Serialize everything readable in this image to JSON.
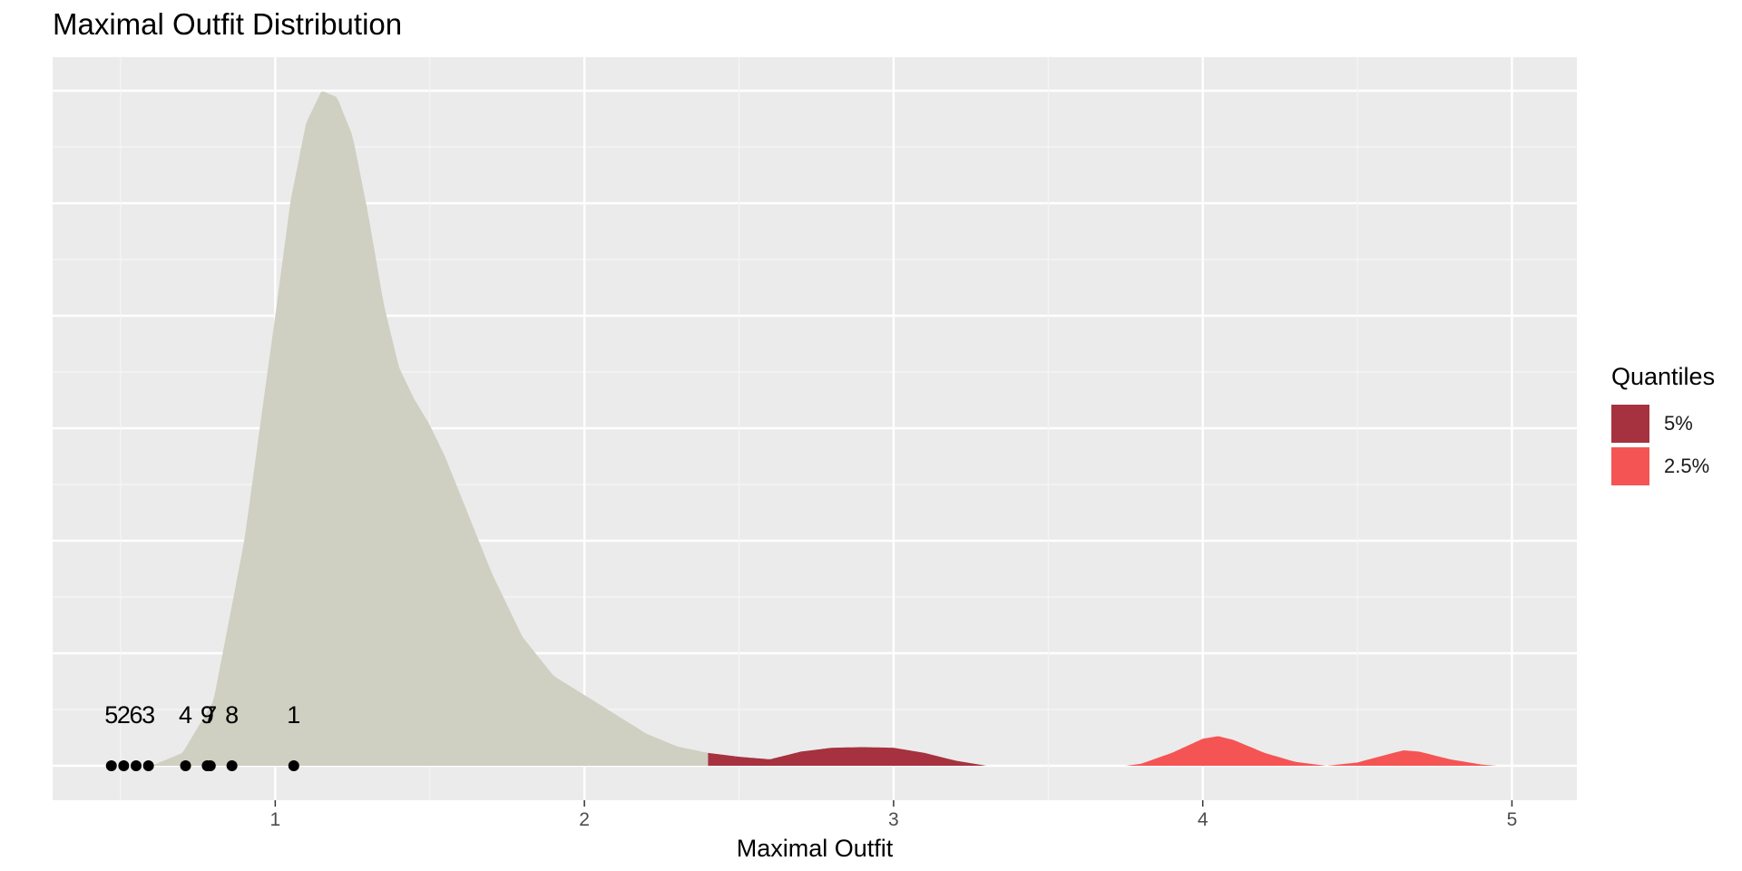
{
  "chart_data": {
    "type": "area",
    "title": "Maximal Outfit Distribution",
    "xlabel": "Maximal Outfit",
    "ylabel": "",
    "xlim": [
      0.28,
      5.21
    ],
    "x_ticks": [
      1,
      2,
      3,
      4,
      5
    ],
    "grid": true,
    "legend": {
      "title": "Quantiles",
      "placement": "right",
      "entries": [
        {
          "label": "5%",
          "color": "#A6323F"
        },
        {
          "label": "2.5%",
          "color": "#F55454"
        }
      ]
    },
    "density_color": "#CFCFC2",
    "panel_background": "#EBEBEB",
    "density_curve": {
      "x": [
        0.6,
        0.7,
        0.8,
        0.9,
        1.0,
        1.05,
        1.1,
        1.15,
        1.2,
        1.25,
        1.3,
        1.35,
        1.4,
        1.45,
        1.5,
        1.55,
        1.6,
        1.7,
        1.8,
        1.9,
        2.0,
        2.1,
        2.2,
        2.3,
        2.4,
        2.5,
        2.6,
        2.7,
        2.8,
        2.9,
        3.0,
        3.1,
        3.2,
        3.3,
        3.4,
        3.5,
        3.6,
        3.7,
        3.75,
        3.8,
        3.9,
        4.0,
        4.05,
        4.1,
        4.2,
        4.3,
        4.4,
        4.5,
        4.6,
        4.65,
        4.7,
        4.8,
        4.9,
        4.95
      ],
      "y": [
        0.0,
        0.02,
        0.1,
        0.35,
        0.7,
        0.88,
        1.0,
        1.05,
        1.04,
        0.98,
        0.86,
        0.72,
        0.62,
        0.57,
        0.53,
        0.48,
        0.42,
        0.3,
        0.2,
        0.14,
        0.11,
        0.08,
        0.05,
        0.03,
        0.02,
        0.014,
        0.01,
        0.022,
        0.028,
        0.029,
        0.028,
        0.02,
        0.008,
        0.0,
        0.0,
        0.0,
        0.0,
        0.0,
        0.0,
        0.003,
        0.02,
        0.042,
        0.046,
        0.04,
        0.02,
        0.006,
        0.0,
        0.005,
        0.018,
        0.024,
        0.022,
        0.01,
        0.002,
        0.0
      ]
    },
    "quantile_regions": [
      {
        "label": "5%",
        "from": 2.4,
        "to": 3.3
      },
      {
        "label": "2.5%",
        "from": 3.73,
        "to": 4.95
      }
    ],
    "points": [
      {
        "label": "5",
        "x": 0.47
      },
      {
        "label": "2",
        "x": 0.51
      },
      {
        "label": "6",
        "x": 0.55
      },
      {
        "label": "3",
        "x": 0.59
      },
      {
        "label": "4",
        "x": 0.71
      },
      {
        "label": "9",
        "x": 0.78
      },
      {
        "label": "7",
        "x": 0.79
      },
      {
        "label": "8",
        "x": 0.86
      },
      {
        "label": "1",
        "x": 1.06
      }
    ]
  }
}
